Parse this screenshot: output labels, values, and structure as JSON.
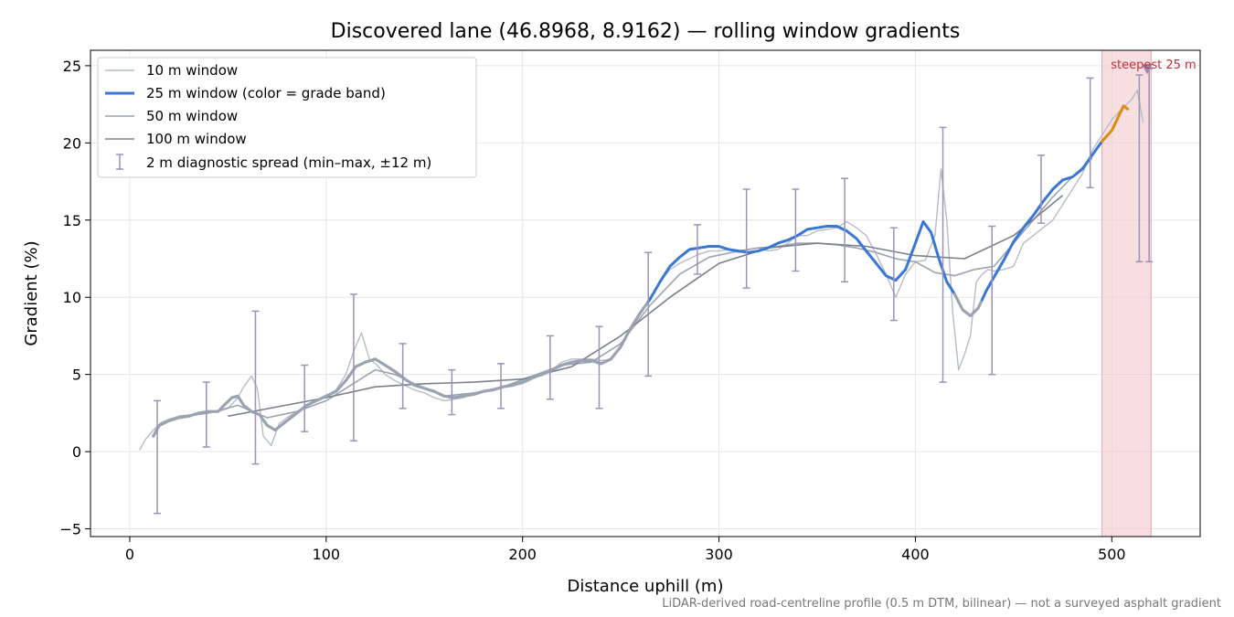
{
  "chart_data": {
    "type": "line",
    "title": "Discovered lane (46.8968, 8.9162) — rolling window gradients",
    "xlabel": "Distance uphill (m)",
    "ylabel": "Gradient (%)",
    "xlim": [
      -20,
      545
    ],
    "ylim": [
      -5.5,
      26
    ],
    "xticks": [
      0,
      100,
      200,
      300,
      400,
      500
    ],
    "yticks": [
      -5,
      0,
      5,
      10,
      15,
      20,
      25
    ],
    "xtick_labels": [
      "0",
      "100",
      "200",
      "300",
      "400",
      "500"
    ],
    "ytick_labels": [
      "−5",
      "0",
      "5",
      "10",
      "15",
      "20",
      "25"
    ],
    "grid": true,
    "legend_position": "top-left",
    "footnote": "LiDAR-derived road-centreline profile (0.5 m DTM, bilinear) — not a surveyed asphalt gradient",
    "colors": {
      "w10": "#b4bcc8",
      "w25_gray": "#9aa3b0",
      "w25_blue": "#3a77d4",
      "w25_orange": "#de8b0e",
      "w50": "#9aa3b2",
      "w100": "#7a808c",
      "errorbar": "#9c92b8",
      "highlight": "#f3cdd0",
      "highlight_edge": "#e3a7ad",
      "annotation": "#c0303a"
    },
    "series": [
      {
        "name": "10 m window",
        "x": [
          5,
          8,
          12,
          16,
          20,
          25,
          30,
          35,
          40,
          45,
          50,
          55,
          58,
          62,
          65,
          68,
          72,
          76,
          80,
          85,
          90,
          95,
          100,
          105,
          110,
          114,
          118,
          122,
          126,
          130,
          135,
          140,
          145,
          150,
          155,
          160,
          165,
          170,
          175,
          180,
          185,
          190,
          195,
          200,
          205,
          210,
          215,
          220,
          225,
          230,
          235,
          240,
          245,
          250,
          255,
          260,
          265,
          270,
          275,
          280,
          285,
          290,
          295,
          300,
          305,
          310,
          315,
          320,
          325,
          330,
          335,
          340,
          345,
          350,
          355,
          360,
          365,
          370,
          375,
          380,
          385,
          390,
          395,
          400,
          405,
          410,
          413,
          416,
          419,
          422,
          425,
          428,
          431,
          434,
          437,
          440,
          445,
          450,
          455,
          460,
          465,
          470,
          475,
          480,
          485,
          490,
          495,
          500,
          505,
          510,
          513,
          516
        ],
        "y": [
          0.1,
          0.8,
          1.4,
          1.9,
          2.1,
          2.3,
          2.3,
          2.4,
          2.5,
          2.6,
          2.8,
          3.5,
          4.2,
          4.9,
          4.1,
          1.0,
          0.4,
          1.8,
          2.2,
          2.6,
          2.9,
          3.3,
          3.6,
          4.0,
          5.0,
          6.5,
          7.7,
          6.0,
          5.6,
          5.0,
          4.6,
          4.3,
          4.0,
          3.8,
          3.5,
          3.3,
          3.4,
          3.5,
          3.8,
          3.9,
          4.0,
          4.2,
          4.3,
          4.4,
          4.7,
          5.0,
          5.3,
          5.8,
          6.0,
          6.0,
          6.0,
          5.9,
          6.0,
          6.8,
          8.0,
          9.0,
          10.0,
          11.0,
          11.8,
          12.2,
          12.5,
          12.8,
          13.0,
          13.0,
          13.1,
          12.9,
          13.1,
          13.2,
          13.0,
          13.1,
          13.5,
          14.0,
          14.0,
          14.3,
          14.4,
          14.5,
          14.9,
          14.5,
          14.0,
          12.8,
          11.5,
          10.0,
          11.5,
          12.3,
          12.4,
          14.0,
          18.3,
          15.0,
          9.0,
          5.3,
          6.3,
          7.5,
          11.0,
          11.5,
          11.8,
          11.7,
          11.8,
          12.0,
          13.5,
          14.0,
          14.5,
          15.0,
          16.0,
          17.0,
          18.0,
          19.5,
          20.5,
          21.5,
          22.2,
          22.8,
          23.4,
          21.3
        ]
      },
      {
        "name": "25 m window (color = grade band)",
        "x": [
          12,
          15,
          20,
          25,
          30,
          35,
          40,
          45,
          48,
          52,
          55,
          58,
          62,
          66,
          70,
          74,
          78,
          82,
          86,
          90,
          95,
          100,
          105,
          110,
          115,
          120,
          125,
          130,
          135,
          140,
          145,
          150,
          155,
          160,
          165,
          170,
          175,
          180,
          185,
          190,
          195,
          200,
          205,
          210,
          215,
          220,
          225,
          230,
          235,
          240,
          245,
          250,
          255,
          260,
          265,
          270,
          275,
          280,
          285,
          290,
          295,
          300,
          305,
          310,
          315,
          320,
          325,
          330,
          335,
          340,
          345,
          350,
          355,
          360,
          365,
          370,
          375,
          380,
          385,
          390,
          395,
          400,
          404,
          408,
          412,
          416,
          420,
          424,
          428,
          432,
          436,
          440,
          445,
          450,
          455,
          460,
          465,
          470,
          475,
          480,
          485,
          490,
          495,
          500,
          503,
          506,
          508
        ],
        "y": [
          1.0,
          1.7,
          2.0,
          2.2,
          2.3,
          2.5,
          2.6,
          2.6,
          3.0,
          3.5,
          3.6,
          3.0,
          2.6,
          2.4,
          1.7,
          1.4,
          1.8,
          2.2,
          2.6,
          3.0,
          3.3,
          3.6,
          3.9,
          4.6,
          5.5,
          5.8,
          6.0,
          5.6,
          5.2,
          4.7,
          4.3,
          4.1,
          3.9,
          3.6,
          3.5,
          3.6,
          3.7,
          3.9,
          4.0,
          4.2,
          4.3,
          4.5,
          4.8,
          5.0,
          5.3,
          5.6,
          5.8,
          5.9,
          5.9,
          5.7,
          6.0,
          6.8,
          8.0,
          9.0,
          9.9,
          11.0,
          12.0,
          12.6,
          13.1,
          13.2,
          13.3,
          13.3,
          13.1,
          13.0,
          12.9,
          13.0,
          13.2,
          13.5,
          13.7,
          14.0,
          14.4,
          14.5,
          14.6,
          14.6,
          14.3,
          13.8,
          13.0,
          12.2,
          11.4,
          11.1,
          11.8,
          13.5,
          14.9,
          14.2,
          12.5,
          11.0,
          10.2,
          9.2,
          8.8,
          9.3,
          10.4,
          11.3,
          12.4,
          13.6,
          14.5,
          15.3,
          16.2,
          17.0,
          17.6,
          17.8,
          18.3,
          19.2,
          20.1,
          20.8,
          21.6,
          22.4,
          22.2
        ],
        "y_at_10pct_start": 264,
        "band_segments": [
          {
            "band": "gray",
            "x_start": 12,
            "x_end": 264
          },
          {
            "band": "blue",
            "x_start": 264,
            "x_end": 420
          },
          {
            "band": "gray",
            "x_start": 420,
            "x_end": 434
          },
          {
            "band": "blue",
            "x_start": 434,
            "x_end": 495
          },
          {
            "band": "orange",
            "x_start": 495,
            "x_end": 508
          }
        ]
      },
      {
        "name": "50 m window",
        "x": [
          25,
          40,
          55,
          70,
          85,
          100,
          115,
          125,
          135,
          145,
          160,
          175,
          190,
          205,
          220,
          235,
          250,
          265,
          280,
          295,
          310,
          320,
          330,
          340,
          350,
          360,
          370,
          380,
          390,
          400,
          410,
          420,
          430,
          440,
          450,
          460,
          470,
          480,
          490
        ],
        "y": [
          2.3,
          2.5,
          3.0,
          2.2,
          2.6,
          3.3,
          4.5,
          5.3,
          5.0,
          4.4,
          3.6,
          3.8,
          4.2,
          4.9,
          5.6,
          5.8,
          7.0,
          9.5,
          11.5,
          12.6,
          13.0,
          13.2,
          13.3,
          13.5,
          13.5,
          13.4,
          13.2,
          12.9,
          12.5,
          12.3,
          11.6,
          11.4,
          11.8,
          12.0,
          13.5,
          15.0,
          16.5,
          17.8,
          19.0
        ]
      },
      {
        "name": "100 m window",
        "x": [
          50,
          75,
          100,
          125,
          150,
          175,
          200,
          225,
          250,
          275,
          300,
          325,
          350,
          375,
          400,
          425,
          450,
          475
        ],
        "y": [
          2.3,
          2.9,
          3.5,
          4.2,
          4.4,
          4.5,
          4.7,
          5.5,
          7.5,
          10.0,
          12.2,
          13.2,
          13.5,
          13.3,
          12.7,
          12.5,
          14.0,
          16.6
        ]
      }
    ],
    "diagnostic_spread": {
      "name": "2 m diagnostic spread (min–max, ±12 m)",
      "x": [
        14,
        39,
        64,
        89,
        114,
        139,
        164,
        189,
        214,
        239,
        264,
        289,
        314,
        339,
        364,
        389,
        414,
        439,
        464,
        489,
        514,
        519
      ],
      "ymin": [
        -4.0,
        0.3,
        -0.8,
        1.3,
        0.7,
        2.8,
        2.4,
        2.8,
        3.4,
        2.8,
        4.9,
        11.5,
        10.6,
        11.7,
        11.0,
        8.5,
        4.5,
        5.0,
        14.8,
        17.1,
        12.3,
        12.3
      ],
      "ymax": [
        3.3,
        4.5,
        9.1,
        5.6,
        10.2,
        7.0,
        5.3,
        5.7,
        7.5,
        8.1,
        12.9,
        14.7,
        17.0,
        17.0,
        17.7,
        14.5,
        21.0,
        14.6,
        19.2,
        24.2,
        24.4,
        24.8
      ]
    },
    "highlight": {
      "label": "steepest 25 m",
      "x_start": 495,
      "x_end": 520,
      "marker_x": 518,
      "marker_y": 24.8
    }
  }
}
